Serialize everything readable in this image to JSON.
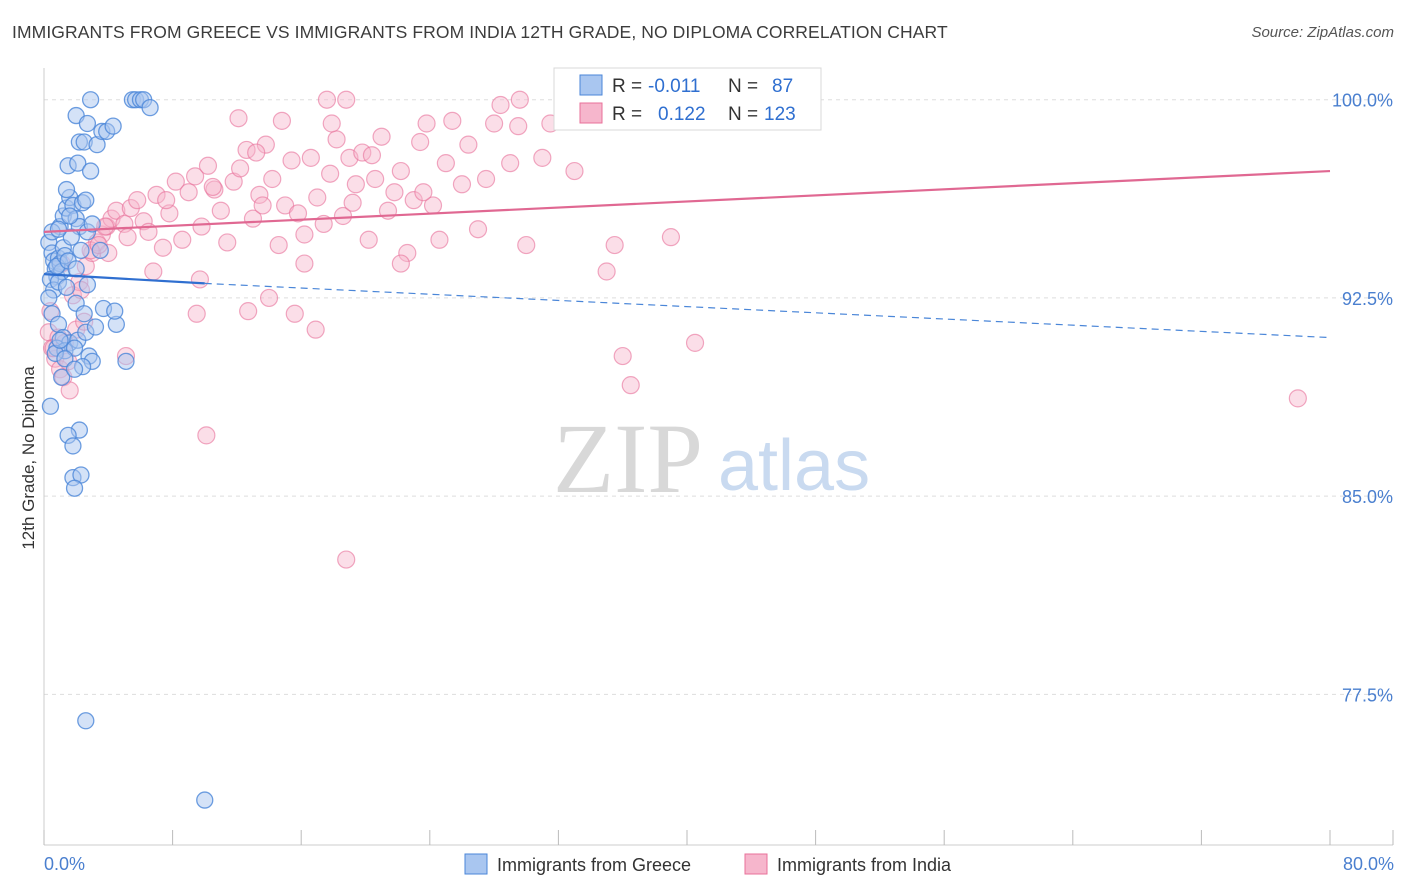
{
  "title": "IMMIGRANTS FROM GREECE VS IMMIGRANTS FROM INDIA 12TH GRADE, NO DIPLOMA CORRELATION CHART",
  "source": "Source: ZipAtlas.com",
  "watermark": {
    "zip": "ZIP",
    "atlas": "atlas"
  },
  "colors": {
    "greece": "#4a86d8",
    "greece_fill": "#a9c6f0",
    "india": "#e8709a",
    "india_fill": "#f6b6cc"
  },
  "legend": {
    "r_label": "R =",
    "n_label": "N =",
    "greece": {
      "r": "-0.011",
      "n": "87"
    },
    "india": {
      "r": "0.122",
      "n": "123"
    }
  },
  "bottom_legend": {
    "greece": "Immigrants from Greece",
    "india": "Immigrants from India"
  },
  "chart_data": {
    "type": "scatter",
    "title": "IMMIGRANTS FROM GREECE VS IMMIGRANTS FROM INDIA 12TH GRADE, NO DIPLOMA CORRELATION CHART",
    "xlabel": "",
    "ylabel": "12th Grade, No Diploma",
    "xlim": [
      0,
      80
    ],
    "ylim": [
      71.8,
      101.2
    ],
    "x_tick_labels": [
      "0.0%",
      "80.0%"
    ],
    "y_ticks": [
      100.0,
      92.5,
      85.0,
      77.5
    ],
    "y_tick_labels": [
      "100.0%",
      "92.5%",
      "85.0%",
      "77.5%"
    ],
    "grid": true,
    "series": [
      {
        "name": "Immigrants from Greece",
        "r": -0.011,
        "n": 87,
        "trend": {
          "x": [
            0,
            10
          ],
          "y": [
            93.4,
            93.05
          ],
          "dashed_to": [
            80,
            91.0
          ]
        },
        "points": [
          [
            0.3,
            94.6
          ],
          [
            0.5,
            94.2
          ],
          [
            0.6,
            93.9
          ],
          [
            0.7,
            93.6
          ],
          [
            0.8,
            93.3
          ],
          [
            0.9,
            94.0
          ],
          [
            1.0,
            93.8
          ],
          [
            1.1,
            93.5
          ],
          [
            1.2,
            94.4
          ],
          [
            0.4,
            93.2
          ],
          [
            0.6,
            92.8
          ],
          [
            0.8,
            93.7
          ],
          [
            1.3,
            94.1
          ],
          [
            1.5,
            93.9
          ],
          [
            1.0,
            95.2
          ],
          [
            1.2,
            95.6
          ],
          [
            1.4,
            95.9
          ],
          [
            1.6,
            96.3
          ],
          [
            1.8,
            96.0
          ],
          [
            2.0,
            95.5
          ],
          [
            2.2,
            95.2
          ],
          [
            2.4,
            96.1
          ],
          [
            2.6,
            96.2
          ],
          [
            1.4,
            96.6
          ],
          [
            1.7,
            94.8
          ],
          [
            2.0,
            93.6
          ],
          [
            2.3,
            94.3
          ],
          [
            2.7,
            95.0
          ],
          [
            3.0,
            95.3
          ],
          [
            3.5,
            94.3
          ],
          [
            1.5,
            97.5
          ],
          [
            2.1,
            97.6
          ],
          [
            2.2,
            98.4
          ],
          [
            2.5,
            98.4
          ],
          [
            2.9,
            97.3
          ],
          [
            3.3,
            98.3
          ],
          [
            3.6,
            98.8
          ],
          [
            3.9,
            98.8
          ],
          [
            2.0,
            99.4
          ],
          [
            2.7,
            99.1
          ],
          [
            4.3,
            99.0
          ],
          [
            2.9,
            100.0
          ],
          [
            5.5,
            100.0
          ],
          [
            5.7,
            100.0
          ],
          [
            6.0,
            100.0
          ],
          [
            6.2,
            100.0
          ],
          [
            6.6,
            99.7
          ],
          [
            0.3,
            92.5
          ],
          [
            0.5,
            91.9
          ],
          [
            0.9,
            91.5
          ],
          [
            1.2,
            91.0
          ],
          [
            1.6,
            90.8
          ],
          [
            2.1,
            90.9
          ],
          [
            2.6,
            91.2
          ],
          [
            3.2,
            91.4
          ],
          [
            0.8,
            90.6
          ],
          [
            1.3,
            90.5
          ],
          [
            1.9,
            90.6
          ],
          [
            2.8,
            90.3
          ],
          [
            3.0,
            90.1
          ],
          [
            4.5,
            91.5
          ],
          [
            5.1,
            90.1
          ],
          [
            1.1,
            89.5
          ],
          [
            2.4,
            89.9
          ],
          [
            0.4,
            88.4
          ],
          [
            2.2,
            87.5
          ],
          [
            1.5,
            87.3
          ],
          [
            1.8,
            86.9
          ],
          [
            1.8,
            85.7
          ],
          [
            2.3,
            85.8
          ],
          [
            1.9,
            85.3
          ],
          [
            2.6,
            76.5
          ],
          [
            10.0,
            73.5
          ],
          [
            0.9,
            93.1
          ],
          [
            1.4,
            92.9
          ],
          [
            2.0,
            92.3
          ],
          [
            3.7,
            92.1
          ],
          [
            4.4,
            92.0
          ],
          [
            2.5,
            91.9
          ],
          [
            0.7,
            90.4
          ],
          [
            1.0,
            90.9
          ],
          [
            1.3,
            90.2
          ],
          [
            1.9,
            89.8
          ],
          [
            2.7,
            93.0
          ],
          [
            0.5,
            95.0
          ],
          [
            0.9,
            95.1
          ],
          [
            1.6,
            95.6
          ]
        ]
      },
      {
        "name": "Immigrants from India",
        "r": 0.122,
        "n": 123,
        "trend": {
          "x": [
            0,
            80
          ],
          "y": [
            95.0,
            97.3
          ]
        },
        "points": [
          [
            0.3,
            91.2
          ],
          [
            0.5,
            90.6
          ],
          [
            0.7,
            90.2
          ],
          [
            1.0,
            89.8
          ],
          [
            1.2,
            89.5
          ],
          [
            1.5,
            90.1
          ],
          [
            2.0,
            91.3
          ],
          [
            2.5,
            91.6
          ],
          [
            1.8,
            92.6
          ],
          [
            2.2,
            93.1
          ],
          [
            2.6,
            93.7
          ],
          [
            3.0,
            94.2
          ],
          [
            3.3,
            94.6
          ],
          [
            3.6,
            94.9
          ],
          [
            3.9,
            95.2
          ],
          [
            4.2,
            95.5
          ],
          [
            4.5,
            95.8
          ],
          [
            5.0,
            95.3
          ],
          [
            5.4,
            95.9
          ],
          [
            5.8,
            96.2
          ],
          [
            6.2,
            95.4
          ],
          [
            6.5,
            95.0
          ],
          [
            7.0,
            96.4
          ],
          [
            7.4,
            94.4
          ],
          [
            7.8,
            95.7
          ],
          [
            8.2,
            96.9
          ],
          [
            8.6,
            94.7
          ],
          [
            9.0,
            96.5
          ],
          [
            9.4,
            97.1
          ],
          [
            9.8,
            95.2
          ],
          [
            10.2,
            97.5
          ],
          [
            10.6,
            96.6
          ],
          [
            11.0,
            95.8
          ],
          [
            11.4,
            94.6
          ],
          [
            11.8,
            96.9
          ],
          [
            12.2,
            97.4
          ],
          [
            12.6,
            98.1
          ],
          [
            13.0,
            95.5
          ],
          [
            13.4,
            96.4
          ],
          [
            13.8,
            98.3
          ],
          [
            14.2,
            97.0
          ],
          [
            14.6,
            94.5
          ],
          [
            15.0,
            96.0
          ],
          [
            15.4,
            97.7
          ],
          [
            15.8,
            95.7
          ],
          [
            16.2,
            94.9
          ],
          [
            16.6,
            97.8
          ],
          [
            17.0,
            96.3
          ],
          [
            17.4,
            95.3
          ],
          [
            17.8,
            97.2
          ],
          [
            18.2,
            98.5
          ],
          [
            18.6,
            95.6
          ],
          [
            19.0,
            97.8
          ],
          [
            19.4,
            96.8
          ],
          [
            19.8,
            98.0
          ],
          [
            20.2,
            94.7
          ],
          [
            20.6,
            97.0
          ],
          [
            21.0,
            98.6
          ],
          [
            21.4,
            95.8
          ],
          [
            21.8,
            96.5
          ],
          [
            22.2,
            97.3
          ],
          [
            22.6,
            94.2
          ],
          [
            23.0,
            96.2
          ],
          [
            23.4,
            98.4
          ],
          [
            23.8,
            99.1
          ],
          [
            24.2,
            96.0
          ],
          [
            24.6,
            94.7
          ],
          [
            25.0,
            97.6
          ],
          [
            25.4,
            99.2
          ],
          [
            26.0,
            96.8
          ],
          [
            26.4,
            98.3
          ],
          [
            27.0,
            95.1
          ],
          [
            27.5,
            97.0
          ],
          [
            28.0,
            99.1
          ],
          [
            28.4,
            99.8
          ],
          [
            29.0,
            97.6
          ],
          [
            29.5,
            99.0
          ],
          [
            30.0,
            94.5
          ],
          [
            31.0,
            97.8
          ],
          [
            31.5,
            99.1
          ],
          [
            33.0,
            97.3
          ],
          [
            33.5,
            99.2
          ],
          [
            35.0,
            93.5
          ],
          [
            35.5,
            94.5
          ],
          [
            36.0,
            90.3
          ],
          [
            36.5,
            89.2
          ],
          [
            39.0,
            94.8
          ],
          [
            40.5,
            90.8
          ],
          [
            14.8,
            99.2
          ],
          [
            17.6,
            100.0
          ],
          [
            18.8,
            100.0
          ],
          [
            29.6,
            100.0
          ],
          [
            12.1,
            99.3
          ],
          [
            17.9,
            99.1
          ],
          [
            1.1,
            93.8
          ],
          [
            2.3,
            92.8
          ],
          [
            4.0,
            94.2
          ],
          [
            5.2,
            94.8
          ],
          [
            6.8,
            93.5
          ],
          [
            9.7,
            93.2
          ],
          [
            9.5,
            91.9
          ],
          [
            12.7,
            92.0
          ],
          [
            14.0,
            92.5
          ],
          [
            15.6,
            91.9
          ],
          [
            16.9,
            91.3
          ],
          [
            22.2,
            93.8
          ],
          [
            16.2,
            93.8
          ],
          [
            10.1,
            87.3
          ],
          [
            18.8,
            82.6
          ],
          [
            78.0,
            88.7
          ],
          [
            0.4,
            92.0
          ],
          [
            0.6,
            90.6
          ],
          [
            0.9,
            91.0
          ],
          [
            1.3,
            90.8
          ],
          [
            1.6,
            89.0
          ],
          [
            2.9,
            94.3
          ],
          [
            3.4,
            94.5
          ],
          [
            5.1,
            90.3
          ],
          [
            7.6,
            96.2
          ],
          [
            10.5,
            96.7
          ],
          [
            13.6,
            96.0
          ],
          [
            19.2,
            96.1
          ],
          [
            23.6,
            96.5
          ],
          [
            20.4,
            97.9
          ],
          [
            13.2,
            98.0
          ],
          [
            3.8,
            95.2
          ]
        ]
      }
    ]
  }
}
